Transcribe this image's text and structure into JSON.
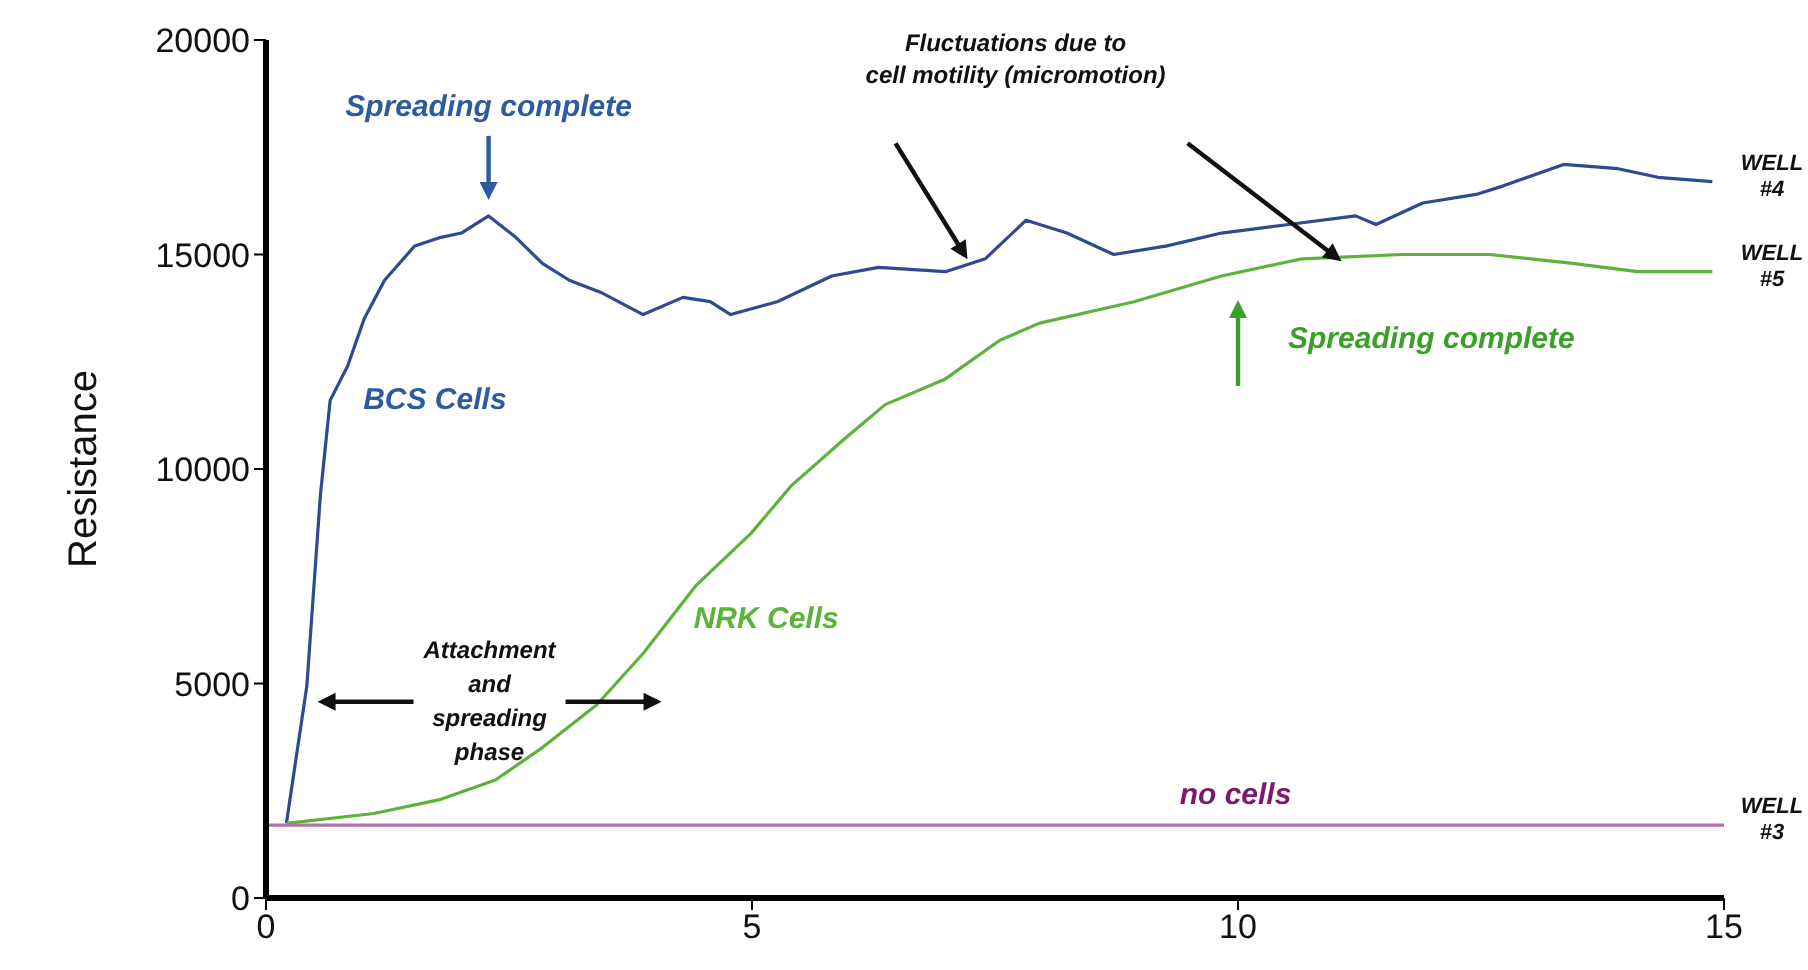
{
  "chart_data": {
    "type": "line",
    "ylabel": "Resistance",
    "xlim": [
      0,
      15
    ],
    "xticks": [
      0,
      5,
      10,
      15
    ],
    "ylim": [
      0,
      20000
    ],
    "yticks": [
      0,
      5000,
      10000,
      15000,
      20000
    ],
    "marker": "none",
    "line_style": "solid",
    "series": [
      {
        "name": "BCS Cells",
        "color": "#2f4a8f",
        "x": [
          0.21,
          0.42,
          0.56,
          0.66,
          0.84,
          1.01,
          1.22,
          1.53,
          1.8,
          2.01,
          2.29,
          2.57,
          2.84,
          3.12,
          3.46,
          3.88,
          4.29,
          4.57,
          4.78,
          5.26,
          5.82,
          6.3,
          6.99,
          7.4,
          7.82,
          8.24,
          8.72,
          9.27,
          9.83,
          10.52,
          11.21,
          11.42,
          11.9,
          12.45,
          12.73,
          13.35,
          13.91,
          14.32,
          14.88
        ],
        "values": [
          1740,
          4940,
          9400,
          11600,
          12400,
          13500,
          14400,
          15200,
          15400,
          15500,
          15900,
          15400,
          14800,
          14400,
          14100,
          13600,
          14000,
          13900,
          13600,
          13900,
          14500,
          14700,
          14600,
          14900,
          15800,
          15500,
          15000,
          15200,
          15500,
          15700,
          15900,
          15700,
          16200,
          16400,
          16600,
          17100,
          17000,
          16800,
          16700
        ]
      },
      {
        "name": "NRK Cells",
        "color": "#5cb33a",
        "x": [
          0.21,
          1.11,
          1.8,
          2.36,
          2.84,
          3.4,
          3.88,
          4.43,
          4.99,
          5.4,
          5.95,
          6.37,
          6.99,
          7.55,
          7.96,
          8.93,
          9.83,
          10.66,
          11.69,
          12.59,
          13.42,
          14.11,
          14.88
        ],
        "values": [
          1740,
          1970,
          2300,
          2750,
          3500,
          4500,
          5700,
          7300,
          8500,
          9600,
          10700,
          11500,
          12100,
          13000,
          13400,
          13900,
          14500,
          14900,
          15000,
          15000,
          14800,
          14600,
          14600
        ]
      },
      {
        "name": "no cells",
        "color": "#b070a8",
        "x": [
          0,
          15
        ],
        "values": [
          1700,
          1700
        ]
      }
    ],
    "annotations": [
      "Spreading complete",
      "Fluctuations due to cell motility (micromotion)",
      "Spreading complete",
      "Attachment and spreading phase",
      "WELL #4",
      "WELL #5",
      "WELL #3"
    ]
  }
}
